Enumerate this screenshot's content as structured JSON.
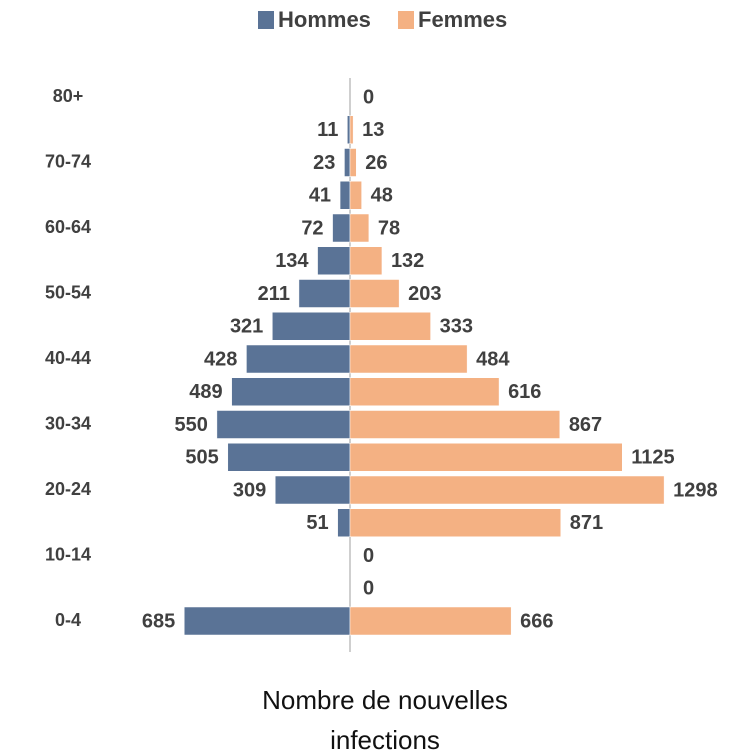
{
  "chart_data": {
    "type": "pyramid",
    "categories": [
      "0-4",
      null,
      "10-14",
      null,
      "20-24",
      null,
      "30-34",
      null,
      "40-44",
      null,
      "50-54",
      null,
      "60-64",
      null,
      "70-74",
      null,
      "80+"
    ],
    "series": [
      {
        "name": "Hommes",
        "color": "#5a7396",
        "values": [
          685,
          null,
          null,
          51,
          309,
          505,
          550,
          489,
          428,
          321,
          211,
          134,
          72,
          41,
          23,
          11,
          null
        ]
      },
      {
        "name": "Femmes",
        "color": "#f4b183",
        "values": [
          666,
          0,
          0,
          871,
          1298,
          1125,
          867,
          616,
          484,
          333,
          203,
          132,
          78,
          48,
          26,
          13,
          0
        ]
      }
    ],
    "x_label": "Nombre de nouvelles infections"
  }
}
